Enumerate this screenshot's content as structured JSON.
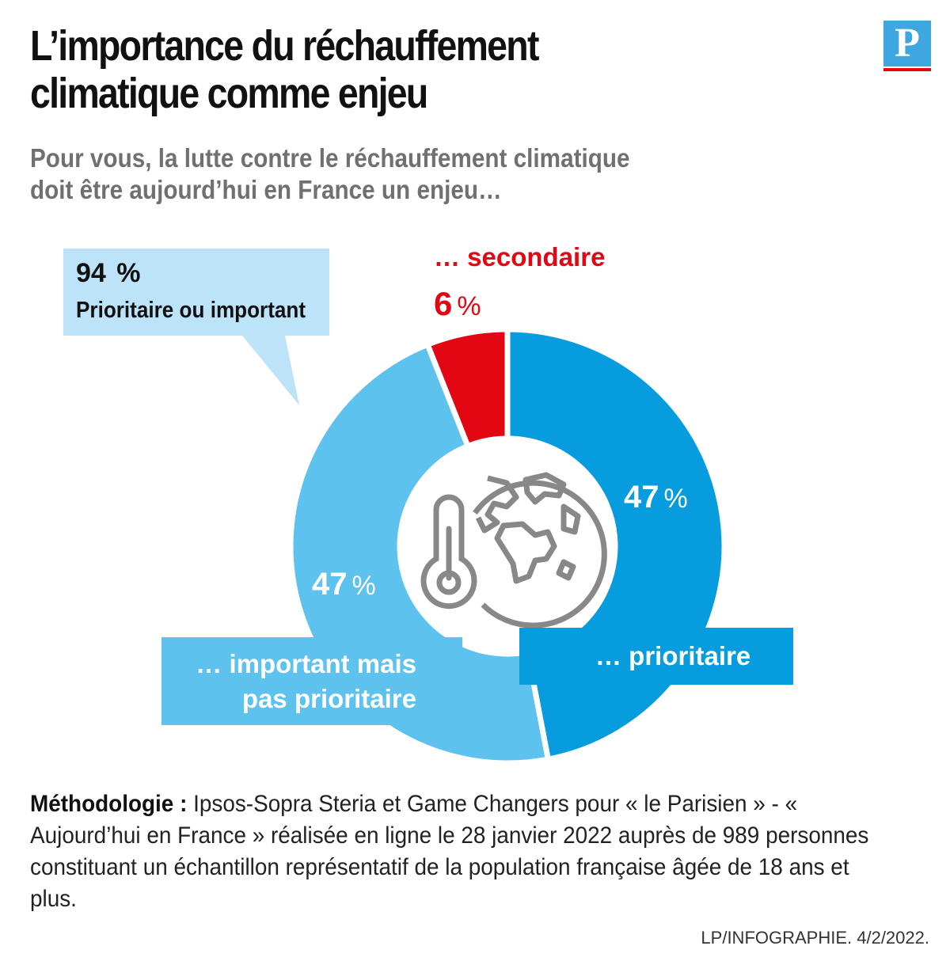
{
  "title": {
    "line1": "L’importance du réchauffement",
    "line2": "climatique comme enjeu"
  },
  "subtitle": {
    "line1": "Pour vous, la lutte contre le réchauffement climatique",
    "line2": "doit être aujourd’hui en France un enjeu…"
  },
  "logo": {
    "letter": "P"
  },
  "callout": {
    "value": "94",
    "unit": "%",
    "label": "Prioritaire ou important"
  },
  "chart_data": {
    "type": "pie",
    "donut": true,
    "categories": [
      "… prioritaire",
      "… important mais pas prioritaire",
      "… secondaire"
    ],
    "values": [
      47,
      47,
      6
    ],
    "unit": "%",
    "colors": [
      "#069cde",
      "#5ec2ee",
      "#e30613"
    ],
    "category_lines": {
      "important": [
        "… important mais",
        "pas prioritaire"
      ]
    },
    "value_labels": [
      "47",
      "47",
      "6"
    ]
  },
  "center_icons": [
    "thermometer-icon",
    "globe-icon"
  ],
  "methodology": {
    "label": "Méthodologie :",
    "text": "Ipsos-Sopra Steria et Game Changers pour « le Parisien » - « Aujourd’hui en France » réalisée en ligne le 28 janvier 2022 auprès de 989 personnes constituant un échantillon représentatif de la population française âgée de 18 ans et plus."
  },
  "source": "LP/INFOGRAPHIE.  4/2/2022."
}
